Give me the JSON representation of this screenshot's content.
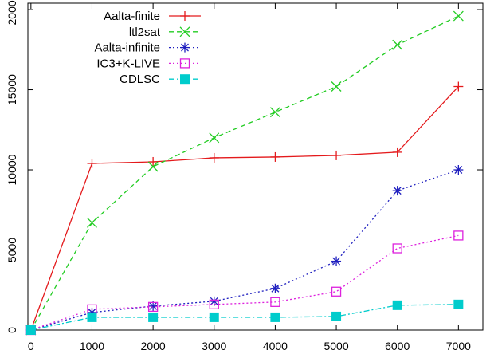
{
  "chart_data": {
    "type": "line",
    "x": [
      0,
      1000,
      2000,
      3000,
      4000,
      5000,
      6000,
      7000
    ],
    "xticks": [
      "0",
      "1000",
      "2000",
      "3000",
      "4000",
      "5000",
      "6000",
      "7000"
    ],
    "yticks": [
      "0",
      "5000",
      "10000",
      "15000",
      "20000"
    ],
    "xlim": [
      -50,
      7400
    ],
    "ylim": [
      0,
      20400
    ],
    "grid": false,
    "legend_position": "top-left",
    "series": [
      {
        "name": "Aalta-finite",
        "color": "#e41a1c",
        "dash": "solid",
        "marker": "plus",
        "values": [
          0,
          10400,
          10500,
          10750,
          10800,
          10900,
          11100,
          15200
        ]
      },
      {
        "name": "ltl2sat",
        "color": "#22cc22",
        "dash": "dashed",
        "marker": "x",
        "values": [
          0,
          6700,
          10200,
          12000,
          13600,
          15200,
          17800,
          19600
        ]
      },
      {
        "name": "Aalta-infinite",
        "color": "#1f1fbf",
        "dash": "dotted",
        "marker": "star",
        "values": [
          0,
          1100,
          1500,
          1800,
          2600,
          4300,
          8700,
          10000
        ]
      },
      {
        "name": "IC3+K-LIVE",
        "color": "#dd22dd",
        "dash": "dotted",
        "marker": "open-square",
        "values": [
          0,
          1300,
          1450,
          1600,
          1750,
          2400,
          5100,
          5900
        ]
      },
      {
        "name": "CDLSC",
        "color": "#00cccc",
        "dash": "dashdot",
        "marker": "filled-square",
        "values": [
          0,
          800,
          800,
          800,
          800,
          850,
          1550,
          1600
        ]
      }
    ]
  }
}
